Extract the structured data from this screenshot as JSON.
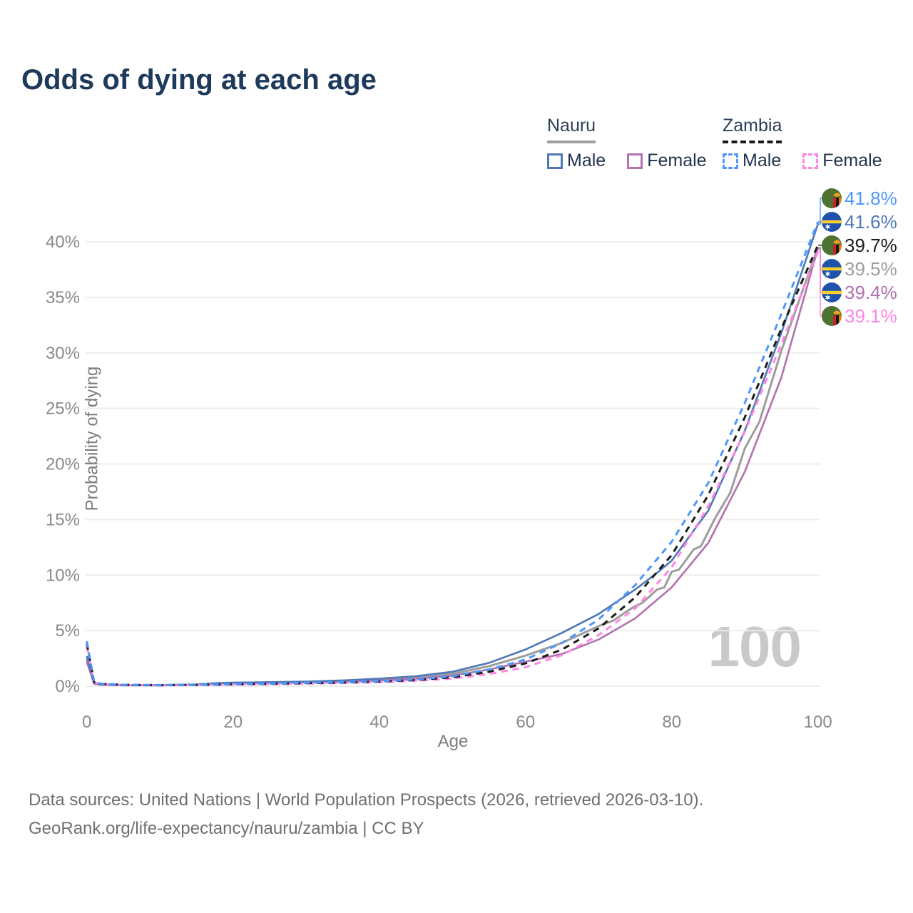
{
  "title": "Odds of dying at each age",
  "watermark": "100",
  "legend": {
    "groups": [
      {
        "name": "Nauru",
        "style": "solid",
        "items": [
          {
            "label": "Male",
            "color": "#4e79b6"
          },
          {
            "label": "Female",
            "color": "#b172ae"
          }
        ]
      },
      {
        "name": "Zambia",
        "style": "dashed",
        "items": [
          {
            "label": "Male",
            "color": "#4d97ff"
          },
          {
            "label": "Female",
            "color": "#ff85e2"
          }
        ]
      }
    ]
  },
  "chart_data": {
    "type": "line",
    "title": "Odds of dying at each age",
    "xlabel": "Age",
    "ylabel": "Probability of dying",
    "xlim": [
      0,
      100
    ],
    "ylim": [
      0,
      44
    ],
    "x_ticks": [
      0,
      20,
      40,
      60,
      80,
      100
    ],
    "y_ticks": [
      "0%",
      "5%",
      "10%",
      "15%",
      "20%",
      "25%",
      "30%",
      "35%",
      "40%"
    ],
    "grid": "horizontal",
    "legend_position": "top-right",
    "series": [
      {
        "id": "nauru-both",
        "name": "Nauru (both sexes)",
        "color": "#9d9d9d",
        "dash": null,
        "width": 3,
        "points": [
          [
            0,
            2.45
          ],
          [
            1,
            0.26
          ],
          [
            2,
            0.14
          ],
          [
            5,
            0.09
          ],
          [
            10,
            0.09
          ],
          [
            15,
            0.14
          ],
          [
            18,
            0.26
          ],
          [
            20,
            0.3
          ],
          [
            25,
            0.34
          ],
          [
            30,
            0.38
          ],
          [
            35,
            0.47
          ],
          [
            40,
            0.6
          ],
          [
            45,
            0.8
          ],
          [
            50,
            1.12
          ],
          [
            55,
            1.8
          ],
          [
            60,
            2.75
          ],
          [
            65,
            3.9
          ],
          [
            70,
            5.4
          ],
          [
            72,
            5.9
          ],
          [
            74,
            6.8
          ],
          [
            75,
            7.2
          ],
          [
            76,
            7.5
          ],
          [
            78,
            8.7
          ],
          [
            79,
            8.9
          ],
          [
            80,
            10.3
          ],
          [
            81,
            10.5
          ],
          [
            83,
            12.3
          ],
          [
            84,
            12.6
          ],
          [
            86,
            15.2
          ],
          [
            88,
            17.4
          ],
          [
            90,
            21.4
          ],
          [
            92,
            23.8
          ],
          [
            95,
            30.2
          ],
          [
            100,
            39.5
          ]
        ]
      },
      {
        "id": "nauru-female",
        "name": "Nauru Female",
        "color": "#b172ae",
        "dash": null,
        "width": 2.6,
        "points": [
          [
            0,
            2.2
          ],
          [
            1,
            0.22
          ],
          [
            2,
            0.12
          ],
          [
            5,
            0.08
          ],
          [
            10,
            0.08
          ],
          [
            15,
            0.12
          ],
          [
            18,
            0.24
          ],
          [
            20,
            0.28
          ],
          [
            25,
            0.31
          ],
          [
            30,
            0.35
          ],
          [
            35,
            0.42
          ],
          [
            40,
            0.52
          ],
          [
            45,
            0.68
          ],
          [
            50,
            0.95
          ],
          [
            55,
            1.5
          ],
          [
            60,
            2.2
          ],
          [
            65,
            2.9
          ],
          [
            70,
            4.2
          ],
          [
            75,
            6.1
          ],
          [
            80,
            8.9
          ],
          [
            85,
            12.9
          ],
          [
            90,
            19.3
          ],
          [
            95,
            27.8
          ],
          [
            100,
            39.4
          ]
        ]
      },
      {
        "id": "nauru-male",
        "name": "Nauru Male",
        "color": "#4e79b6",
        "dash": null,
        "width": 2.6,
        "points": [
          [
            0,
            2.7
          ],
          [
            1,
            0.3
          ],
          [
            2,
            0.16
          ],
          [
            5,
            0.1
          ],
          [
            10,
            0.1
          ],
          [
            15,
            0.16
          ],
          [
            18,
            0.28
          ],
          [
            20,
            0.32
          ],
          [
            25,
            0.36
          ],
          [
            30,
            0.42
          ],
          [
            35,
            0.52
          ],
          [
            40,
            0.68
          ],
          [
            45,
            0.9
          ],
          [
            50,
            1.3
          ],
          [
            55,
            2.1
          ],
          [
            60,
            3.3
          ],
          [
            65,
            4.8
          ],
          [
            70,
            6.5
          ],
          [
            75,
            8.7
          ],
          [
            78,
            10.2
          ],
          [
            80,
            11.3
          ],
          [
            85,
            15.8
          ],
          [
            90,
            23.0
          ],
          [
            95,
            31.8
          ],
          [
            100,
            41.6
          ]
        ]
      },
      {
        "id": "zambia-female",
        "name": "Zambia Female",
        "color": "#ff85e2",
        "dash": [
          9,
          7
        ],
        "width": 3,
        "points": [
          [
            0,
            3.6
          ],
          [
            1,
            0.33
          ],
          [
            2,
            0.18
          ],
          [
            5,
            0.11
          ],
          [
            10,
            0.08
          ],
          [
            15,
            0.1
          ],
          [
            20,
            0.14
          ],
          [
            25,
            0.18
          ],
          [
            30,
            0.23
          ],
          [
            35,
            0.28
          ],
          [
            40,
            0.36
          ],
          [
            45,
            0.48
          ],
          [
            50,
            0.68
          ],
          [
            55,
            1.1
          ],
          [
            60,
            1.7
          ],
          [
            65,
            2.8
          ],
          [
            70,
            4.6
          ],
          [
            75,
            7.0
          ],
          [
            80,
            10.7
          ],
          [
            85,
            16.2
          ],
          [
            90,
            22.9
          ],
          [
            95,
            30.8
          ],
          [
            100,
            39.1
          ]
        ]
      },
      {
        "id": "zambia-both",
        "name": "Zambia (both sexes)",
        "color": "#1c1c1c",
        "dash": [
          9,
          7
        ],
        "width": 3,
        "points": [
          [
            0,
            3.85
          ],
          [
            1,
            0.36
          ],
          [
            2,
            0.2
          ],
          [
            5,
            0.12
          ],
          [
            10,
            0.09
          ],
          [
            15,
            0.11
          ],
          [
            20,
            0.17
          ],
          [
            25,
            0.22
          ],
          [
            30,
            0.27
          ],
          [
            35,
            0.33
          ],
          [
            40,
            0.42
          ],
          [
            45,
            0.55
          ],
          [
            50,
            0.8
          ],
          [
            55,
            1.3
          ],
          [
            60,
            2.05
          ],
          [
            65,
            3.3
          ],
          [
            70,
            5.2
          ],
          [
            75,
            8.0
          ],
          [
            80,
            11.8
          ],
          [
            85,
            17.2
          ],
          [
            90,
            24.2
          ],
          [
            95,
            32.2
          ],
          [
            100,
            39.7
          ]
        ]
      },
      {
        "id": "zambia-male",
        "name": "Zambia Male",
        "color": "#4d97ff",
        "dash": [
          9,
          7
        ],
        "width": 3,
        "points": [
          [
            0,
            4.05
          ],
          [
            1,
            0.4
          ],
          [
            2,
            0.22
          ],
          [
            5,
            0.13
          ],
          [
            10,
            0.1
          ],
          [
            15,
            0.12
          ],
          [
            20,
            0.18
          ],
          [
            25,
            0.24
          ],
          [
            30,
            0.3
          ],
          [
            35,
            0.36
          ],
          [
            40,
            0.45
          ],
          [
            45,
            0.6
          ],
          [
            50,
            0.9
          ],
          [
            55,
            1.5
          ],
          [
            60,
            2.4
          ],
          [
            65,
            3.9
          ],
          [
            70,
            6.0
          ],
          [
            75,
            9.1
          ],
          [
            80,
            13.0
          ],
          [
            85,
            18.3
          ],
          [
            90,
            25.5
          ],
          [
            95,
            33.5
          ],
          [
            100,
            41.8
          ]
        ]
      }
    ],
    "end_labels": [
      {
        "series": "zambia-male",
        "value": "41.8%",
        "flag": "zambia",
        "color": "#4d97ff"
      },
      {
        "series": "nauru-male",
        "value": "41.6%",
        "flag": "nauru",
        "color": "#4e79b6"
      },
      {
        "series": "zambia-both",
        "value": "39.7%",
        "flag": "zambia",
        "color": "#1c1c1c"
      },
      {
        "series": "nauru-both",
        "value": "39.5%",
        "flag": "nauru",
        "color": "#9d9d9d"
      },
      {
        "series": "nauru-female",
        "value": "39.4%",
        "flag": "nauru",
        "color": "#b172ae"
      },
      {
        "series": "zambia-female",
        "value": "39.1%",
        "flag": "zambia",
        "color": "#ff85e2"
      }
    ]
  },
  "colors": {
    "title": "#1d3a5c",
    "axis_text": "#8a8a8a",
    "gridline": "#ededed",
    "watermark": "#c9c9c9",
    "nauru_male": "#4e79b6",
    "nauru_female": "#b172ae",
    "nauru_both": "#9d9d9d",
    "zambia_male": "#4d97ff",
    "zambia_female": "#ff85e2",
    "zambia_both": "#1c1c1c"
  },
  "footer": {
    "line1": "Data sources: United Nations | World Population Prospects (2026, retrieved 2026-03-10).",
    "line2": "GeoRank.org/life-expectancy/nauru/zambia | CC BY"
  }
}
